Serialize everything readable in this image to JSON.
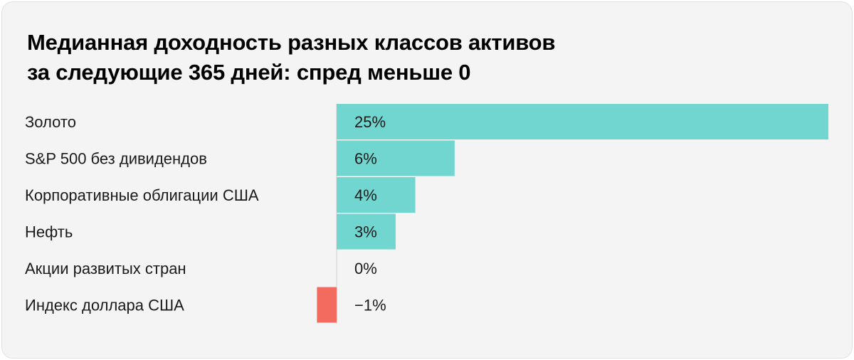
{
  "chart_data": {
    "type": "bar",
    "orientation": "horizontal",
    "title_lines": [
      "Медианная доходность разных классов активов",
      "за следующие 365 дней: спред меньше 0"
    ],
    "categories": [
      "Золото",
      "S&P 500 без дивидендов",
      "Корпоративные облигации США",
      "Нефть",
      "Акции развитых стран",
      "Индекс доллара США"
    ],
    "values": [
      25,
      6,
      4,
      3,
      0,
      -1
    ],
    "value_labels": [
      "25%",
      "6%",
      "4%",
      "3%",
      "0%",
      "−1%"
    ],
    "unit": "%",
    "xlim": [
      -1,
      25
    ],
    "grid": false,
    "legend": "none",
    "colors": {
      "positive": "#72d6d0",
      "negative": "#f36b5e",
      "axis": "#cfcfcf",
      "background": "#f4f4f4"
    }
  }
}
